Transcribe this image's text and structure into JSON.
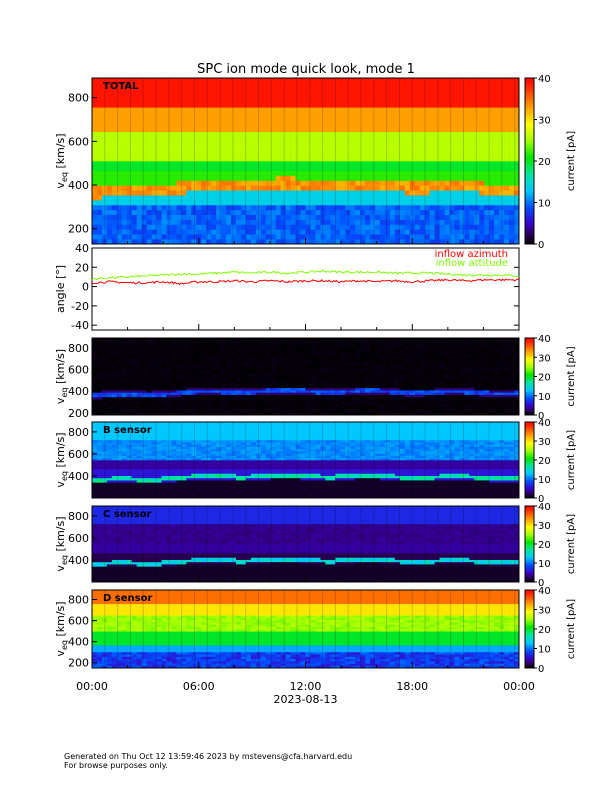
{
  "title": "SPC ion mode quick look, mode 1",
  "footer": {
    "line1": "Generated on Thu Oct 12 13:59:46 2023 by mstevens@cfa.harvard.edu",
    "line2": "For browse purposes only."
  },
  "chart_data": [
    {
      "type": "heatmap",
      "panel": "total",
      "label": "TOTAL",
      "ylabel_main": "v",
      "ylabel_sub": "eq",
      "ylabel_unit": " [km/s]",
      "ylim": [
        130,
        890
      ],
      "yticks": [
        200,
        400,
        600,
        800
      ],
      "xlim": [
        0,
        24
      ],
      "colorbar": {
        "label": "current [pA]",
        "range": [
          0,
          40
        ],
        "ticks": [
          0,
          10,
          20,
          30,
          40
        ]
      },
      "description_bands": [
        {
          "v_from": 160,
          "v_to": 300,
          "current": 8
        },
        {
          "v_from": 300,
          "v_to": 340,
          "current": 12
        },
        {
          "v_from": 340,
          "v_to": 420,
          "current": 33
        },
        {
          "v_from": 420,
          "v_to": 470,
          "current": 22
        },
        {
          "v_from": 470,
          "v_to": 560,
          "current": 20
        },
        {
          "v_from": 560,
          "v_to": 650,
          "current": 25
        },
        {
          "v_from": 650,
          "v_to": 760,
          "current": 33
        },
        {
          "v_from": 760,
          "v_to": 890,
          "current": 39
        }
      ]
    },
    {
      "type": "line",
      "panel": "angle",
      "ylabel": "angle [°]",
      "ylim": [
        -45,
        40
      ],
      "yticks": [
        -40,
        -20,
        0,
        20,
        40
      ],
      "xlim": [
        0,
        24
      ],
      "legend_position": "top-right",
      "series": [
        {
          "name": "inflow azimuth",
          "color": "#ff0000",
          "x": [
            0,
            1,
            2,
            3,
            4,
            5,
            6,
            7,
            8,
            9,
            10,
            11,
            12,
            13,
            14,
            15,
            16,
            17,
            18,
            19,
            20,
            21,
            22,
            23,
            24
          ],
          "values": [
            4,
            5,
            4,
            4,
            5,
            3,
            5,
            5,
            6,
            5,
            6,
            5,
            6,
            6,
            5,
            6,
            5,
            6,
            5,
            6,
            7,
            6,
            7,
            7,
            7
          ]
        },
        {
          "name": "inflow attitude",
          "color": "#7fff00",
          "x": [
            0,
            1,
            2,
            3,
            4,
            5,
            6,
            7,
            8,
            9,
            10,
            11,
            12,
            13,
            14,
            15,
            16,
            17,
            18,
            19,
            20,
            21,
            22,
            23,
            24
          ],
          "values": [
            8,
            9,
            10,
            11,
            12,
            13,
            13,
            14,
            15,
            14,
            15,
            14,
            15,
            16,
            15,
            15,
            15,
            14,
            14,
            14,
            13,
            12,
            12,
            12,
            11
          ]
        }
      ]
    },
    {
      "type": "heatmap",
      "panel": "A sensor",
      "label": "",
      "ylabel_main": "v",
      "ylabel_sub": "eq",
      "ylabel_unit": " [km/s]",
      "ylim": [
        180,
        890
      ],
      "yticks": [
        200,
        400,
        600,
        800
      ],
      "xlim": [
        0,
        24
      ],
      "colorbar": {
        "label": "current [pA]",
        "range": [
          0,
          40
        ],
        "ticks": [
          0,
          10,
          20,
          30,
          40
        ]
      }
    },
    {
      "type": "heatmap",
      "panel": "B sensor",
      "label": "B sensor",
      "ylabel_main": "v",
      "ylabel_sub": "eq",
      "ylabel_unit": " [km/s]",
      "ylim": [
        200,
        890
      ],
      "yticks": [
        400,
        600,
        800
      ],
      "xlim": [
        0,
        24
      ],
      "colorbar": {
        "label": "current [pA]",
        "range": [
          0,
          40
        ],
        "ticks": [
          0,
          10,
          20,
          30,
          40
        ]
      }
    },
    {
      "type": "heatmap",
      "panel": "C sensor",
      "label": "C sensor",
      "ylabel_main": "v",
      "ylabel_sub": "eq",
      "ylabel_unit": " [km/s]",
      "ylim": [
        200,
        890
      ],
      "yticks": [
        400,
        600,
        800
      ],
      "xlim": [
        0,
        24
      ],
      "colorbar": {
        "label": "current [pA]",
        "range": [
          0,
          40
        ],
        "ticks": [
          0,
          10,
          20,
          30,
          40
        ]
      }
    },
    {
      "type": "heatmap",
      "panel": "D sensor",
      "label": "D sensor",
      "ylabel_main": "v",
      "ylabel_sub": "eq",
      "ylabel_unit": " [km/s]",
      "ylim": [
        150,
        890
      ],
      "yticks": [
        200,
        400,
        600,
        800
      ],
      "xlim": [
        0,
        24
      ],
      "colorbar": {
        "label": "current [pA]",
        "range": [
          0,
          40
        ],
        "ticks": [
          0,
          10,
          20,
          30,
          40
        ]
      }
    }
  ],
  "xaxis": {
    "ticks": [
      "00:00",
      "06:00",
      "12:00",
      "18:00",
      "00:00"
    ],
    "tick_values": [
      0,
      6,
      12,
      18,
      24
    ],
    "date_label": "2023-08-13"
  }
}
